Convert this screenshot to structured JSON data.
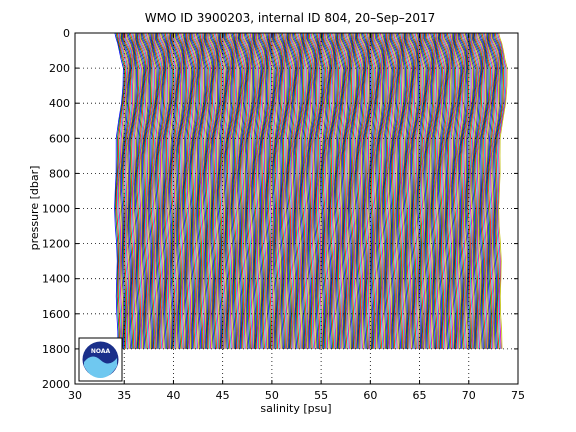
{
  "chart_data": {
    "type": "line",
    "title": "WMO ID 3900203, internal ID 804, 20–Sep–2017",
    "xlabel": "salinity [psu]",
    "ylabel": "pressure [dbar]",
    "xlim": [
      30,
      75
    ],
    "ylim": [
      0,
      2000
    ],
    "y_reversed": true,
    "grid": "dotted",
    "xticks": [
      "30",
      "35",
      "40",
      "45",
      "50",
      "55",
      "60",
      "65",
      "70",
      "75"
    ],
    "yticks": [
      "0",
      "200",
      "400",
      "600",
      "800",
      "1000",
      "1200",
      "1400",
      "1600",
      "1800",
      "2000"
    ],
    "series_style": "waterfall of many staggered salinity profiles (each offset ~0.1 psu), cycling colours",
    "profile_start_salinity": 34.2,
    "profile_end_salinity": 73.2,
    "profile_offset": 0.1,
    "profile_max_pressure": 1800,
    "profile_shape": {
      "pressure": [
        0,
        30,
        60,
        100,
        150,
        200,
        300,
        400,
        500,
        600,
        700,
        800,
        900,
        1000,
        1100,
        1200,
        1300,
        1400,
        1500,
        1600,
        1700,
        1800
      ],
      "salinity_anomaly": [
        -0.15,
        -0.1,
        0.1,
        0.35,
        0.55,
        0.7,
        0.6,
        0.5,
        0.3,
        0.05,
        -0.05,
        -0.1,
        -0.12,
        -0.1,
        -0.06,
        -0.02,
        0.02,
        0.05,
        0.07,
        0.08,
        0.09,
        0.1
      ]
    },
    "series_colors": [
      "#0000ff",
      "#008000",
      "#ff0000",
      "#00bfbf",
      "#bf00bf",
      "#bfbf00",
      "#404040"
    ]
  },
  "logo": {
    "name": "noaa-logo",
    "text": "NOAA"
  }
}
